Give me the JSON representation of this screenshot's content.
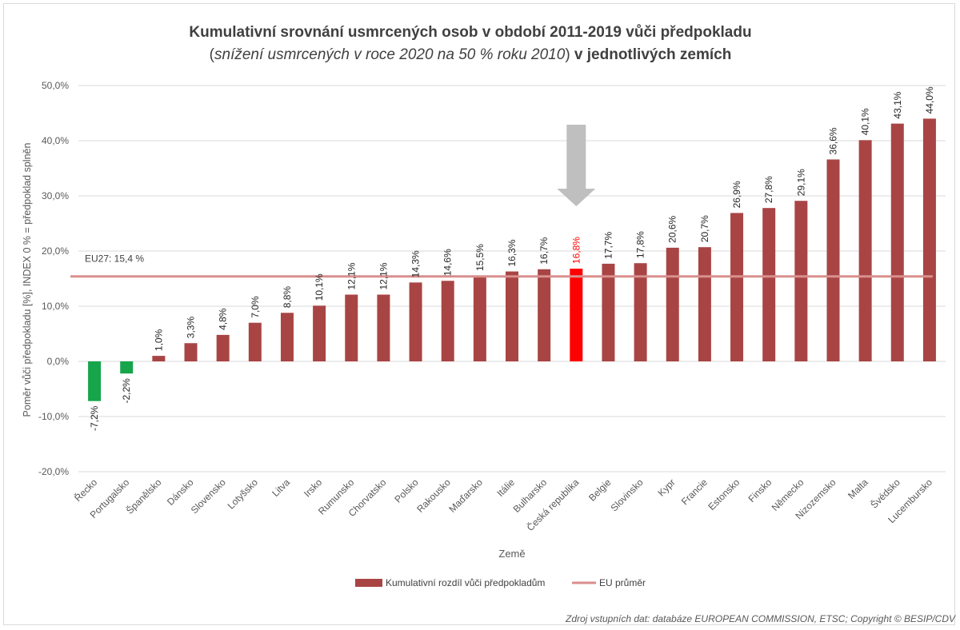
{
  "chart_data": {
    "type": "bar",
    "title_line1": "Kumulativní srovnání usmrcených osob v období 2011-2019 vůči předpokladu",
    "title_line2_italic": "snížení usmrcených v roce 2020 na 50 % roku 2010",
    "title_line2_bold": "v jednotlivých zemích",
    "title_open_paren": "(",
    "title_close_paren": ")",
    "xlabel": "Země",
    "ylabel": "Poměr vůči předpokladu [%],  INDEX 0 %  = předpoklad splněn",
    "ylim": [
      -20,
      50
    ],
    "yticks": [
      "-20,0%",
      "-10,0%",
      "0,0%",
      "10,0%",
      "20,0%",
      "30,0%",
      "40,0%",
      "50,0%"
    ],
    "ytick_values": [
      -20,
      -10,
      0,
      10,
      20,
      30,
      40,
      50
    ],
    "grid": true,
    "categories": [
      "Řecko",
      "Portugalsko",
      "Španělsko",
      "Dánsko",
      "Slovensko",
      "Lotyšsko",
      "Litva",
      "Irsko",
      "Rumunsko",
      "Chorvatsko",
      "Polsko",
      "Rakousko",
      "Maďarsko",
      "Itálie",
      "Bulharsko",
      "Česká republika",
      "Belgie",
      "Slovinsko",
      "Kypr",
      "Francie",
      "Estonsko",
      "Finsko",
      "Německo",
      "Nizozemsko",
      "Malta",
      "Švédsko",
      "Lucembursko"
    ],
    "values": [
      -7.2,
      -2.2,
      1.0,
      3.3,
      4.8,
      7.0,
      8.8,
      10.1,
      12.1,
      12.1,
      14.3,
      14.6,
      15.5,
      16.3,
      16.7,
      16.8,
      17.7,
      17.8,
      20.6,
      20.7,
      26.9,
      27.8,
      29.1,
      36.6,
      40.1,
      43.1,
      44.0
    ],
    "labels": [
      "-7,2%",
      "-2,2%",
      "1,0%",
      "3,3%",
      "4,8%",
      "7,0%",
      "8,8%",
      "10,1%",
      "12,1%",
      "12,1%",
      "14,3%",
      "14,6%",
      "15,5%",
      "16,3%",
      "16,7%",
      "16,8%",
      "17,7%",
      "17,8%",
      "20,6%",
      "20,7%",
      "26,9%",
      "27,8%",
      "29,1%",
      "36,6%",
      "40,1%",
      "43,1%",
      "44,0%"
    ],
    "series": [
      {
        "name": "Kumulativní rozdíl vůči předpokladům",
        "type": "bar",
        "color": "#a84544"
      },
      {
        "name": "EU průměr",
        "type": "line",
        "value": 15.4,
        "color": "#d98f8e"
      }
    ],
    "negative_color": "#16a54a",
    "highlight": {
      "category": "Česká republika",
      "color": "#ff0000"
    },
    "annotations": {
      "eu_average_label": "EU27: 15,4 %",
      "arrow_target": "Česká republika",
      "arrow_color": "#bfbfbf"
    },
    "legend": {
      "placement": "bottom",
      "entries": [
        "Kumulativní rozdíl vůči předpokladům",
        "EU průměr"
      ]
    }
  },
  "source": "Zdroj vstupních dat: databáze EUROPEAN COMMISSION, ETSC; Copyright © BESIP/CDV"
}
